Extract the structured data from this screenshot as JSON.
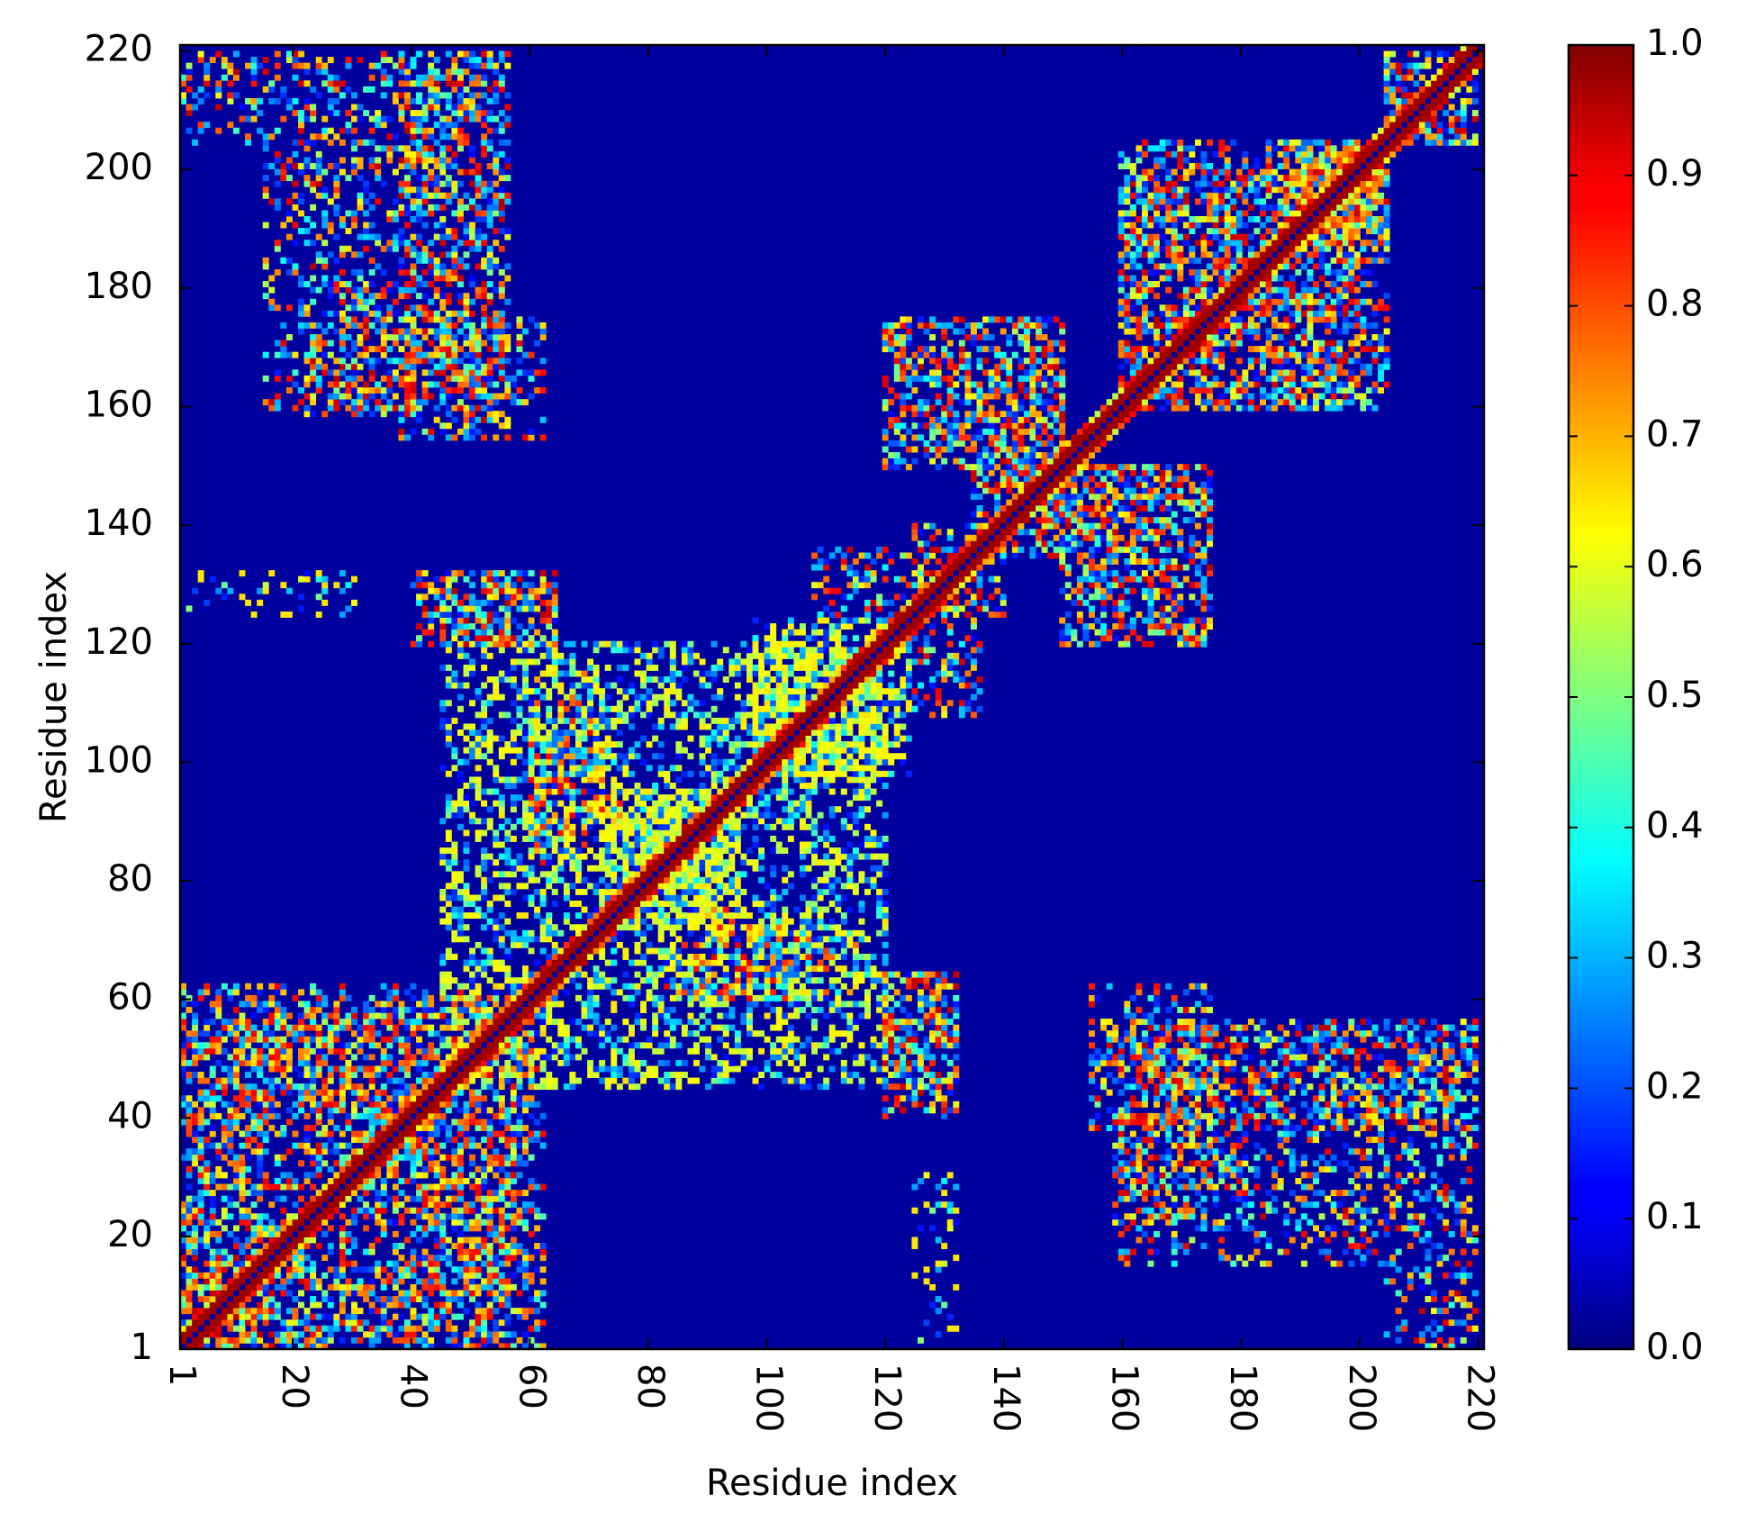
{
  "chart_data": {
    "type": "heatmap",
    "title": "",
    "xlabel": "Residue index",
    "ylabel": "Residue index",
    "n_residues": 221,
    "xlim": [
      1,
      221
    ],
    "ylim": [
      1,
      221
    ],
    "x_ticks": [
      1,
      20,
      40,
      60,
      80,
      100,
      120,
      140,
      160,
      180,
      200,
      220
    ],
    "y_ticks": [
      1,
      20,
      40,
      60,
      80,
      100,
      120,
      140,
      160,
      180,
      200,
      220
    ],
    "x_tick_labels": [
      "1",
      "20",
      "40",
      "60",
      "80",
      "100",
      "120",
      "140",
      "160",
      "180",
      "200",
      "220"
    ],
    "y_tick_labels": [
      "1",
      "20",
      "40",
      "60",
      "80",
      "100",
      "120",
      "140",
      "160",
      "180",
      "200",
      "220"
    ],
    "x_tick_rotation": "vertical",
    "symmetric": true,
    "colormap": "jet",
    "colorbar": {
      "range": [
        0.0,
        1.0
      ],
      "ticks": [
        0.0,
        0.1,
        0.2,
        0.3,
        0.4,
        0.5,
        0.6,
        0.7,
        0.8,
        0.9,
        1.0
      ],
      "tick_labels": [
        "0.0",
        "0.1",
        "0.2",
        "0.3",
        "0.4",
        "0.5",
        "0.6",
        "0.7",
        "0.8",
        "0.9",
        "1.0"
      ],
      "position": "right"
    },
    "diagonal": {
      "band_value": 0.97,
      "center_value": 0.05
    },
    "background_value": 0.03,
    "contact_regions": [
      {
        "x": [
          1,
          22
        ],
        "y": [
          1,
          22
        ],
        "density": 0.45,
        "peak": 0.9
      },
      {
        "x": [
          22,
          62
        ],
        "y": [
          1,
          60
        ],
        "density": 0.35,
        "peak": 0.85
      },
      {
        "x": [
          2,
          15
        ],
        "y": [
          28,
          45
        ],
        "density": 0.3,
        "peak": 0.85
      },
      {
        "x": [
          6,
          18
        ],
        "y": [
          48,
          58
        ],
        "density": 0.3,
        "peak": 0.6
      },
      {
        "x": [
          22,
          42
        ],
        "y": [
          38,
          45
        ],
        "density": 0.3,
        "peak": 0.85
      },
      {
        "x": [
          40,
          56
        ],
        "y": [
          1,
          22
        ],
        "density": 0.3,
        "peak": 0.85
      },
      {
        "x": [
          22,
          36
        ],
        "y": [
          1,
          4
        ],
        "density": 0.3,
        "peak": 0.85
      },
      {
        "x": [
          38,
          56
        ],
        "y": [
          155,
          220
        ],
        "density": 0.35,
        "peak": 0.9
      },
      {
        "x": [
          22,
          42
        ],
        "y": [
          159,
          180
        ],
        "density": 0.3,
        "peak": 0.9
      },
      {
        "x": [
          40,
          64
        ],
        "y": [
          120,
          132
        ],
        "density": 0.4,
        "peak": 0.9
      },
      {
        "x": [
          45,
          120
        ],
        "y": [
          45,
          120
        ],
        "density": 0.25,
        "peak": 0.5
      },
      {
        "x": [
          72,
          92
        ],
        "y": [
          72,
          95
        ],
        "density": 0.4,
        "peak": 0.5
      },
      {
        "x": [
          98,
          122
        ],
        "y": [
          98,
          124
        ],
        "density": 0.4,
        "peak": 0.55
      },
      {
        "x": [
          83,
          115
        ],
        "y": [
          60,
          70
        ],
        "density": 0.35,
        "peak": 0.85
      },
      {
        "x": [
          60,
          75
        ],
        "y": [
          90,
          107
        ],
        "density": 0.35,
        "peak": 0.85
      },
      {
        "x": [
          120,
          130
        ],
        "y": [
          45,
          64
        ],
        "density": 0.4,
        "peak": 0.9
      },
      {
        "x": [
          125,
          136
        ],
        "y": [
          108,
          140
        ],
        "density": 0.35,
        "peak": 0.9
      },
      {
        "x": [
          120,
          150
        ],
        "y": [
          150,
          175
        ],
        "density": 0.35,
        "peak": 0.9
      },
      {
        "x": [
          138,
          150
        ],
        "y": [
          135,
          160
        ],
        "density": 0.35,
        "peak": 0.9
      },
      {
        "x": [
          150,
          175
        ],
        "y": [
          120,
          150
        ],
        "density": 0.35,
        "peak": 0.9
      },
      {
        "x": [
          155,
          175
        ],
        "y": [
          45,
          62
        ],
        "density": 0.35,
        "peak": 0.85
      },
      {
        "x": [
          160,
          220
        ],
        "y": [
          15,
          55
        ],
        "density": 0.3,
        "peak": 0.9
      },
      {
        "x": [
          205,
          220
        ],
        "y": [
          1,
          15
        ],
        "density": 0.35,
        "peak": 0.9
      },
      {
        "x": [
          160,
          200
        ],
        "y": [
          160,
          205
        ],
        "density": 0.4,
        "peak": 0.9
      },
      {
        "x": [
          188,
          204
        ],
        "y": [
          188,
          205
        ],
        "density": 0.6,
        "peak": 0.75
      },
      {
        "x": [
          205,
          220
        ],
        "y": [
          205,
          220
        ],
        "density": 0.4,
        "peak": 0.9
      },
      {
        "x": [
          125,
          132
        ],
        "y": [
          1,
          30
        ],
        "density": 0.2,
        "peak": 0.6
      }
    ]
  }
}
